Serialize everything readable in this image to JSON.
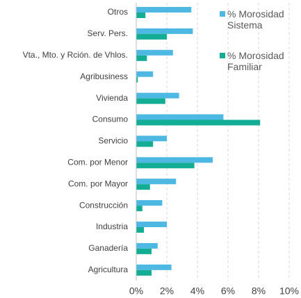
{
  "chart_data": {
    "type": "barh",
    "categories": [
      "Otros",
      "Serv. Pers.",
      "Vta., Mto. y Rción. de Vhlos.",
      "Agribusiness",
      "Vivienda",
      "Consumo",
      "Servicio",
      "Com. por Menor",
      "Com. por Mayor",
      "Construcción",
      "Industria",
      "Ganadería",
      "Agricultura"
    ],
    "series": [
      {
        "name": "% Morosidad Sistema",
        "color": "#4db8e2",
        "values": [
          3.6,
          3.7,
          2.4,
          1.1,
          2.8,
          5.7,
          2.0,
          5.0,
          2.6,
          1.7,
          2.0,
          1.4,
          2.3
        ]
      },
      {
        "name": "% Morosidad Familiar",
        "color": "#12ad94",
        "values": [
          0.6,
          2.0,
          0.7,
          0.1,
          1.9,
          8.1,
          1.1,
          3.8,
          0.9,
          0.4,
          0.5,
          1.0,
          1.0
        ]
      }
    ],
    "xlim": [
      0,
      10
    ],
    "xticks": [
      {
        "value": 0,
        "label": "0%"
      },
      {
        "value": 2,
        "label": "2%"
      },
      {
        "value": 4,
        "label": "4%"
      },
      {
        "value": 6,
        "label": "6%"
      },
      {
        "value": 8,
        "label": "8%"
      },
      {
        "value": 10,
        "label": "10%"
      }
    ],
    "grid": true,
    "legend": "top-right"
  }
}
